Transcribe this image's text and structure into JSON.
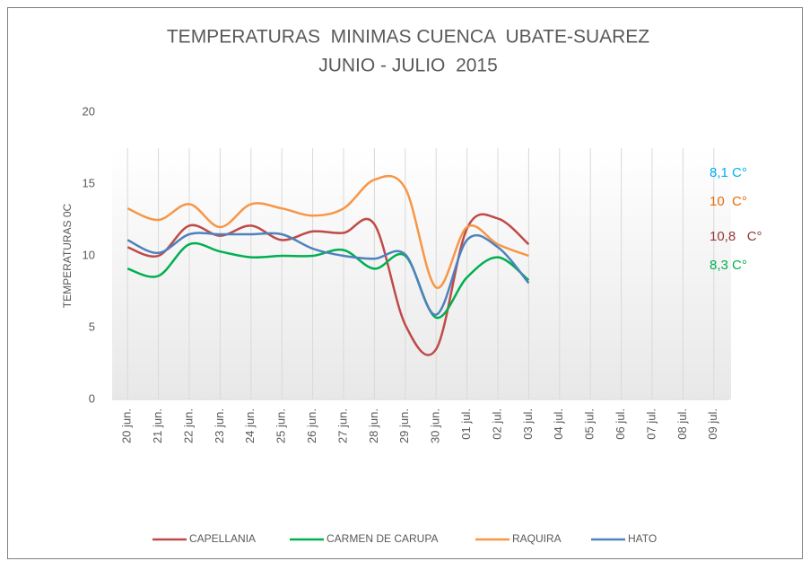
{
  "chart_data": {
    "type": "line",
    "title": "TEMPERATURAS  MINIMAS CUENCA  UBATE-SUAREZ",
    "subtitle": "JUNIO - JULIO  2015",
    "y_label": "TEMPERATURAS 0C",
    "categories": [
      "20 jun.",
      "21 jun.",
      "22 jun.",
      "23 jun.",
      "24 jun.",
      "25 jun.",
      "26 jun.",
      "27 jun.",
      "28 jun.",
      "29 jun.",
      "30 jun.",
      "01 jul.",
      "02 jul.",
      "03 jul.",
      "04 jul.",
      "05 jul.",
      "06 jul.",
      "07 jul.",
      "08 jul.",
      "09 jul."
    ],
    "series": [
      {
        "name": "CAPELLANIA",
        "color": "#be4b48",
        "values": [
          10.6,
          10,
          12.1,
          11.4,
          12.1,
          11.1,
          11.7,
          11.6,
          12.2,
          5.2,
          3.5,
          11.9,
          12.6,
          10.8,
          null,
          null,
          null,
          null,
          null,
          null
        ]
      },
      {
        "name": "CARMEN DE CARUPA",
        "color": "#00b050",
        "values": [
          9.1,
          8.6,
          10.8,
          10.3,
          9.9,
          10,
          10,
          10.4,
          9.1,
          10,
          5.7,
          8.5,
          9.9,
          8.3,
          null,
          null,
          null,
          null,
          null,
          null
        ]
      },
      {
        "name": "RAQUIRA",
        "color": "#f79646",
        "values": [
          13.3,
          12.5,
          13.6,
          12,
          13.6,
          13.3,
          12.8,
          13.3,
          15.3,
          14.7,
          7.8,
          12,
          10.8,
          10,
          null,
          null,
          null,
          null,
          null,
          null
        ]
      },
      {
        "name": "HATO",
        "color": "#4f81bd",
        "values": [
          11.1,
          10.2,
          11.5,
          11.5,
          11.5,
          11.5,
          10.5,
          10,
          9.8,
          10.1,
          5.9,
          11.1,
          10.6,
          8.1,
          null,
          null,
          null,
          null,
          null,
          null
        ]
      }
    ],
    "annotations": [
      {
        "text": "8,1 C°",
        "color": "#00b0f0"
      },
      {
        "text": "10  C°",
        "color": "#e46c0a"
      },
      {
        "text": "10,8   C°",
        "color": "#953735"
      },
      {
        "text": "8,3 C°",
        "color": "#00b050"
      }
    ],
    "ylim": [
      0,
      20
    ],
    "yticks": [
      0,
      5,
      10,
      15,
      20
    ],
    "grid": true
  }
}
